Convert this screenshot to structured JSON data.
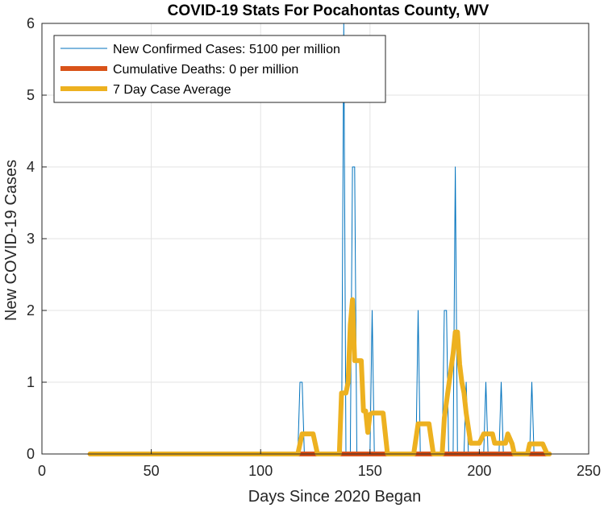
{
  "chart_data": {
    "type": "line",
    "title": "COVID-19 Stats For Pocahontas County, WV",
    "xlabel": "Days Since 2020 Began",
    "ylabel": "New COVID-19 Cases",
    "xlim": [
      0,
      250
    ],
    "ylim": [
      0,
      6
    ],
    "xticks": [
      0,
      50,
      100,
      150,
      200,
      250
    ],
    "yticks": [
      0,
      1,
      2,
      3,
      4,
      5,
      6
    ],
    "grid": true,
    "legend_position": "top-left",
    "series": [
      {
        "name": "New Confirmed Cases: 5100 per million",
        "color": "#0072BD",
        "style": "thin",
        "points": [
          [
            22,
            0
          ],
          [
            117,
            0
          ],
          [
            118,
            1
          ],
          [
            119,
            1
          ],
          [
            120,
            0
          ],
          [
            137,
            0
          ],
          [
            138,
            6
          ],
          [
            139,
            0
          ],
          [
            141,
            0
          ],
          [
            142,
            4
          ],
          [
            143,
            4
          ],
          [
            144,
            0
          ],
          [
            150,
            0
          ],
          [
            151,
            2
          ],
          [
            152,
            0
          ],
          [
            171,
            0
          ],
          [
            172,
            2
          ],
          [
            173,
            0
          ],
          [
            183,
            0
          ],
          [
            184,
            2
          ],
          [
            185,
            2
          ],
          [
            186,
            0
          ],
          [
            188,
            0
          ],
          [
            189,
            4
          ],
          [
            190,
            0
          ],
          [
            193,
            0
          ],
          [
            194,
            1
          ],
          [
            195,
            0
          ],
          [
            202,
            0
          ],
          [
            203,
            1
          ],
          [
            204,
            0
          ],
          [
            209,
            0
          ],
          [
            210,
            1
          ],
          [
            211,
            0
          ],
          [
            223,
            0
          ],
          [
            224,
            1
          ],
          [
            225,
            0
          ],
          [
            232,
            0
          ]
        ]
      },
      {
        "name": "Cumulative Deaths: 0 per million",
        "color": "#D95319",
        "style": "thick",
        "points": [
          [
            22,
            0
          ],
          [
            232,
            0
          ]
        ]
      },
      {
        "name": "7 Day Case Average",
        "color": "#EDB120",
        "style": "thick",
        "points": [
          [
            22,
            0
          ],
          [
            117,
            0
          ],
          [
            119,
            0.28
          ],
          [
            124,
            0.28
          ],
          [
            126,
            0
          ],
          [
            136,
            0
          ],
          [
            137,
            0.85
          ],
          [
            139,
            0.85
          ],
          [
            140,
            1.0
          ],
          [
            141,
            1.8
          ],
          [
            142,
            2.15
          ],
          [
            143,
            1.3
          ],
          [
            146,
            1.3
          ],
          [
            147,
            0.6
          ],
          [
            148,
            0.6
          ],
          [
            149,
            0.3
          ],
          [
            150,
            0.55
          ],
          [
            151,
            0.57
          ],
          [
            156,
            0.57
          ],
          [
            158,
            0
          ],
          [
            170,
            0
          ],
          [
            172,
            0.42
          ],
          [
            177,
            0.42
          ],
          [
            179,
            0
          ],
          [
            183,
            0
          ],
          [
            184,
            0.5
          ],
          [
            186,
            0.95
          ],
          [
            188,
            1.4
          ],
          [
            189,
            1.7
          ],
          [
            190,
            1.7
          ],
          [
            191,
            1.25
          ],
          [
            192,
            1.0
          ],
          [
            193,
            0.85
          ],
          [
            194,
            0.57
          ],
          [
            196,
            0.15
          ],
          [
            200,
            0.15
          ],
          [
            202,
            0.28
          ],
          [
            206,
            0.28
          ],
          [
            207,
            0.15
          ],
          [
            212,
            0.15
          ],
          [
            213,
            0.28
          ],
          [
            215,
            0.14
          ],
          [
            216,
            0
          ],
          [
            222,
            0
          ],
          [
            223,
            0.14
          ],
          [
            229,
            0.14
          ],
          [
            231,
            0
          ],
          [
            232,
            0
          ]
        ]
      }
    ]
  }
}
